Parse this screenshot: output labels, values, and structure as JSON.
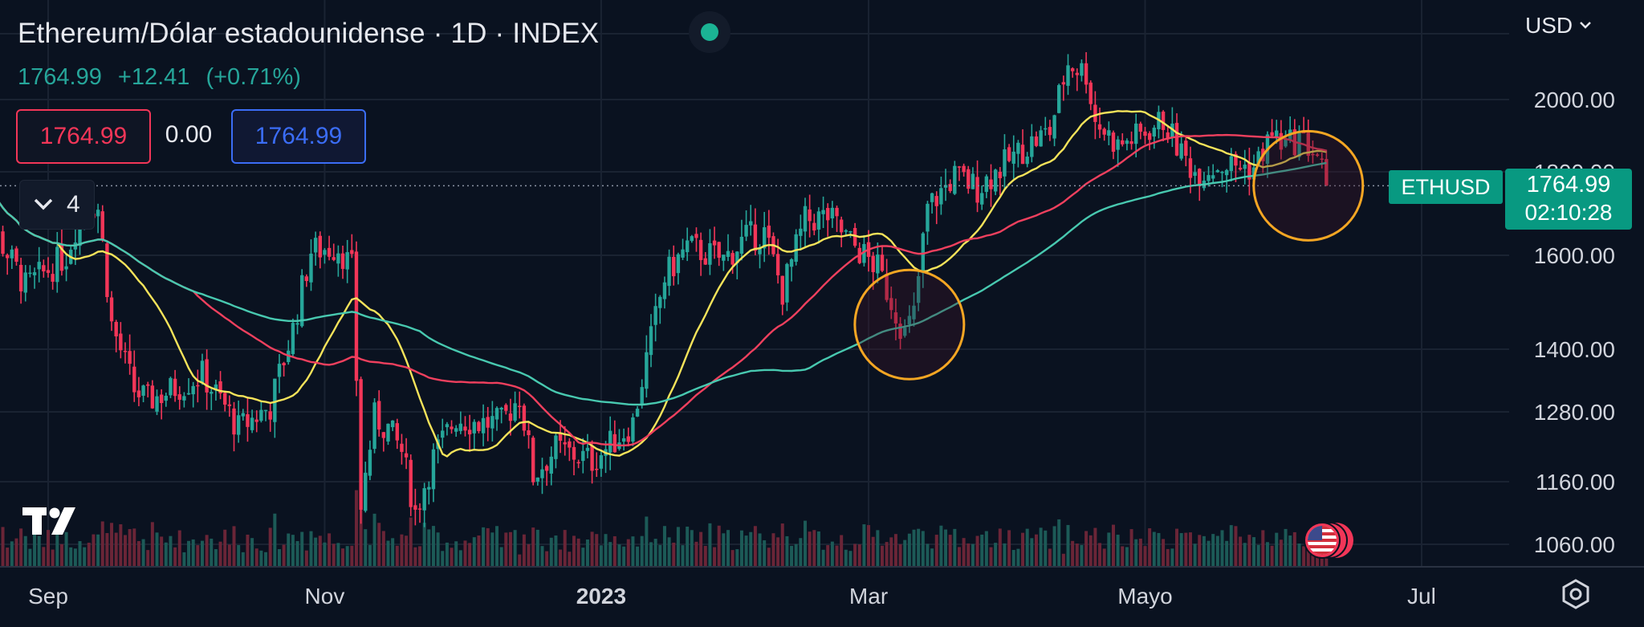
{
  "header": {
    "title": "Ethereum/Dólar estadounidense · 1D · INDEX",
    "last": "1764.99",
    "change": "+12.41",
    "change_pct": "(+0.71%)",
    "sell": "1764.99",
    "spread": "0.00",
    "buy": "1764.99",
    "indicators_count": "4",
    "currency": "USD"
  },
  "price_tag": {
    "symbol": "ETHUSD",
    "value": "1764.99",
    "countdown": "02:10:28"
  },
  "colors": {
    "background": "#0a1220",
    "up": "#26a69a",
    "down": "#f23658",
    "ma_fast": "#f5e35a",
    "ma_mid": "#f0405e",
    "ma_slow": "#48c9b0",
    "highlight_circle": "#f5a623",
    "grid": "#1a2332",
    "status_dot": "#1bb394"
  },
  "icons": {
    "logo": "tradingview-logo-icon",
    "event": "us-flag-icon",
    "settings": "settings-icon"
  },
  "chart_data": {
    "type": "candlestick",
    "symbol": "ETHUSD",
    "interval": "1D",
    "currency": "USD",
    "x_range": [
      "2022-08-15",
      "2023-07-15"
    ],
    "y_range": [
      1000,
      2200
    ],
    "log_scale": true,
    "grid": true,
    "y_ticks": [
      2000.0,
      1800.0,
      1600.0,
      1400.0,
      1280.0,
      1160.0,
      1060.0
    ],
    "y_tick_labels": [
      "2000.00",
      "1800.00",
      "1600.00",
      "1400.00",
      "1280.00",
      "1160.00",
      "1060.00"
    ],
    "x_tick_labels": [
      {
        "date": "2022-09-01",
        "label": "Sep",
        "bold": false
      },
      {
        "date": "2022-11-01",
        "label": "Nov",
        "bold": false
      },
      {
        "date": "2023-01-01",
        "label": "2023",
        "bold": true
      },
      {
        "date": "2023-03-01",
        "label": "Mar",
        "bold": false
      },
      {
        "date": "2023-05-01",
        "label": "Mayo",
        "bold": false
      },
      {
        "date": "2023-07-01",
        "label": "Jul",
        "bold": false
      }
    ],
    "last_price": 1764.99,
    "close_path": [
      [
        "2022-08-15",
        1840
      ],
      [
        "2022-08-20",
        1660
      ],
      [
        "2022-08-27",
        1530
      ],
      [
        "2022-08-31",
        1560
      ],
      [
        "2022-09-05",
        1600
      ],
      [
        "2022-09-09",
        1730
      ],
      [
        "2022-09-12",
        1710
      ],
      [
        "2022-09-15",
        1450
      ],
      [
        "2022-09-20",
        1320
      ],
      [
        "2022-09-23",
        1300
      ],
      [
        "2022-09-28",
        1320
      ],
      [
        "2022-10-05",
        1350
      ],
      [
        "2022-10-10",
        1290
      ],
      [
        "2022-10-13",
        1250
      ],
      [
        "2022-10-20",
        1290
      ],
      [
        "2022-10-25",
        1440
      ],
      [
        "2022-10-29",
        1610
      ],
      [
        "2022-11-04",
        1620
      ],
      [
        "2022-11-07",
        1570
      ],
      [
        "2022-11-09",
        1120
      ],
      [
        "2022-11-12",
        1270
      ],
      [
        "2022-11-15",
        1250
      ],
      [
        "2022-11-18",
        1210
      ],
      [
        "2022-11-21",
        1110
      ],
      [
        "2022-11-25",
        1200
      ],
      [
        "2022-11-30",
        1270
      ],
      [
        "2022-12-05",
        1260
      ],
      [
        "2022-12-10",
        1260
      ],
      [
        "2022-12-14",
        1310
      ],
      [
        "2022-12-17",
        1170
      ],
      [
        "2022-12-22",
        1215
      ],
      [
        "2022-12-30",
        1195
      ],
      [
        "2023-01-02",
        1215
      ],
      [
        "2023-01-08",
        1260
      ],
      [
        "2023-01-12",
        1420
      ],
      [
        "2023-01-15",
        1550
      ],
      [
        "2023-01-20",
        1620
      ],
      [
        "2023-01-28",
        1590
      ],
      [
        "2023-02-02",
        1640
      ],
      [
        "2023-02-06",
        1650
      ],
      [
        "2023-02-10",
        1520
      ],
      [
        "2023-02-15",
        1680
      ],
      [
        "2023-02-20",
        1690
      ],
      [
        "2023-02-25",
        1630
      ],
      [
        "2023-03-03",
        1570
      ],
      [
        "2023-03-09",
        1430
      ],
      [
        "2023-03-11",
        1470
      ],
      [
        "2023-03-14",
        1710
      ],
      [
        "2023-03-20",
        1790
      ],
      [
        "2023-03-25",
        1760
      ],
      [
        "2023-03-31",
        1820
      ],
      [
        "2023-04-05",
        1870
      ],
      [
        "2023-04-10",
        1910
      ],
      [
        "2023-04-14",
        2110
      ],
      [
        "2023-04-18",
        2080
      ],
      [
        "2023-04-20",
        1940
      ],
      [
        "2023-04-25",
        1870
      ],
      [
        "2023-04-30",
        1900
      ],
      [
        "2023-05-05",
        1940
      ],
      [
        "2023-05-09",
        1850
      ],
      [
        "2023-05-12",
        1800
      ],
      [
        "2023-05-18",
        1820
      ],
      [
        "2023-05-25",
        1810
      ],
      [
        "2023-05-29",
        1900
      ],
      [
        "2023-06-01",
        1870
      ],
      [
        "2023-06-04",
        1890
      ],
      [
        "2023-06-08",
        1845
      ],
      [
        "2023-06-10",
        1764.99
      ]
    ],
    "moving_averages": [
      {
        "color_key": "ma_fast",
        "period": 20
      },
      {
        "color_key": "ma_mid",
        "period": 50
      },
      {
        "color_key": "ma_slow",
        "period": 100
      }
    ],
    "highlights": [
      {
        "date": "2023-03-10",
        "price": 1450,
        "color_key": "highlight_circle"
      },
      {
        "date": "2023-06-06",
        "price": 1765,
        "color_key": "highlight_circle"
      }
    ]
  }
}
